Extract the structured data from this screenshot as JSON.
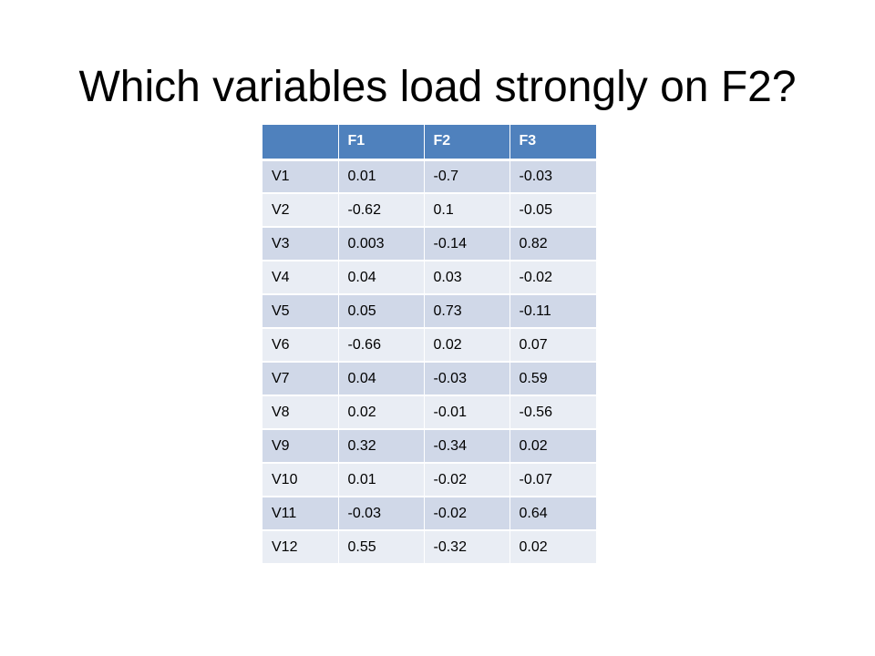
{
  "slide": {
    "title": "Which variables load strongly on F2?"
  },
  "table": {
    "headers": [
      "",
      "F1",
      "F2",
      "F3"
    ],
    "rows": [
      [
        "V1",
        "0.01",
        "-0.7",
        "-0.03"
      ],
      [
        "V2",
        "-0.62",
        "0.1",
        "-0.05"
      ],
      [
        "V3",
        "0.003",
        "-0.14",
        "0.82"
      ],
      [
        "V4",
        "0.04",
        "0.03",
        "-0.02"
      ],
      [
        "V5",
        "0.05",
        "0.73",
        "-0.11"
      ],
      [
        "V6",
        "-0.66",
        "0.02",
        "0.07"
      ],
      [
        "V7",
        "0.04",
        "-0.03",
        "0.59"
      ],
      [
        "V8",
        "0.02",
        "-0.01",
        "-0.56"
      ],
      [
        "V9",
        "0.32",
        "-0.34",
        "0.02"
      ],
      [
        "V10",
        "0.01",
        "-0.02",
        "-0.07"
      ],
      [
        "V11",
        "-0.03",
        "-0.02",
        "0.64"
      ],
      [
        "V12",
        "0.55",
        "-0.32",
        "0.02"
      ]
    ]
  },
  "colors": {
    "header_background": "#4f81bd",
    "row_odd_background": "#d0d8e8",
    "row_even_background": "#e9edf4"
  }
}
